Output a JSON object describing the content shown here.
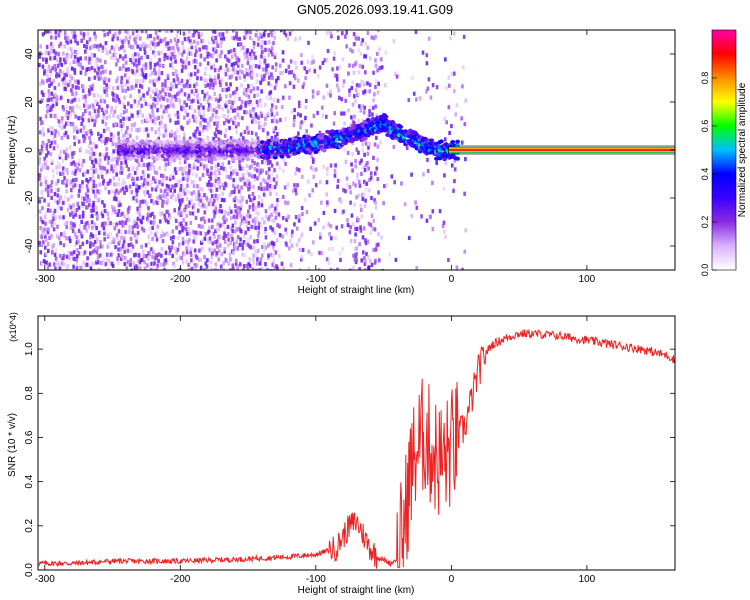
{
  "title": "GN05.2026.093.19.41.G09",
  "colors": {
    "snr_line": "#ee2222",
    "frame": "#000000",
    "colormap": [
      "#ffffff",
      "#d9b3ff",
      "#8a2be2",
      "#3b00ff",
      "#0000ff",
      "#00bfff",
      "#00ff00",
      "#ffff00",
      "#ff8c00",
      "#ff0000",
      "#ff00aa"
    ]
  },
  "chart_data": [
    {
      "type": "heatmap",
      "title": "GN05.2026.093.19.41.G09",
      "xlabel": "Height of straight line (km)",
      "ylabel": "Frequency (Hz)",
      "xlim": [
        -305,
        165
      ],
      "ylim": [
        -50,
        50
      ],
      "x_ticks": [
        -300,
        -200,
        -100,
        0,
        100
      ],
      "y_ticks": [
        -40,
        -20,
        0,
        20,
        40
      ],
      "colorbar": {
        "label": "Normalized spectral amplitude",
        "range": [
          0,
          1
        ],
        "ticks": [
          0.0,
          0.2,
          0.4,
          0.6,
          0.8
        ]
      },
      "ridge": {
        "height_km": [
          -140,
          -120,
          -100,
          -80,
          -60,
          -50,
          -40,
          -30,
          -20,
          -10,
          0,
          10,
          50,
          100,
          165
        ],
        "frequency_hz": [
          0,
          1,
          3,
          5,
          9,
          11,
          7,
          5,
          2,
          0,
          0,
          0,
          0,
          0,
          0
        ]
      }
    },
    {
      "type": "line",
      "xlabel": "Height of straight line (km)",
      "ylabel": "SNR (10 * v/v)",
      "y_multiplier": "(x10^4)",
      "xlim": [
        -305,
        165
      ],
      "ylim": [
        0,
        1.15
      ],
      "x_ticks": [
        -300,
        -200,
        -100,
        0,
        100
      ],
      "y_ticks": [
        0.0,
        0.2,
        0.4,
        0.6,
        0.8,
        1.0
      ],
      "series": [
        {
          "x": [
            -305,
            -280,
            -250,
            -200,
            -150,
            -120,
            -100,
            -85,
            -80,
            -75,
            -70,
            -65,
            -60,
            -55,
            -45,
            -40,
            -35,
            -30,
            -25,
            -20,
            -15,
            -10,
            -5,
            0,
            10,
            20,
            25,
            30,
            40,
            50,
            60,
            80,
            100,
            120,
            140,
            160,
            165
          ],
          "y": [
            0.03,
            0.03,
            0.04,
            0.04,
            0.05,
            0.06,
            0.07,
            0.1,
            0.15,
            0.2,
            0.22,
            0.16,
            0.1,
            0.06,
            0.03,
            0.05,
            0.2,
            0.45,
            0.55,
            0.62,
            0.55,
            0.5,
            0.5,
            0.55,
            0.65,
            0.9,
            0.98,
            1.02,
            1.05,
            1.07,
            1.07,
            1.06,
            1.04,
            1.02,
            1.0,
            0.97,
            0.95
          ]
        }
      ]
    }
  ]
}
